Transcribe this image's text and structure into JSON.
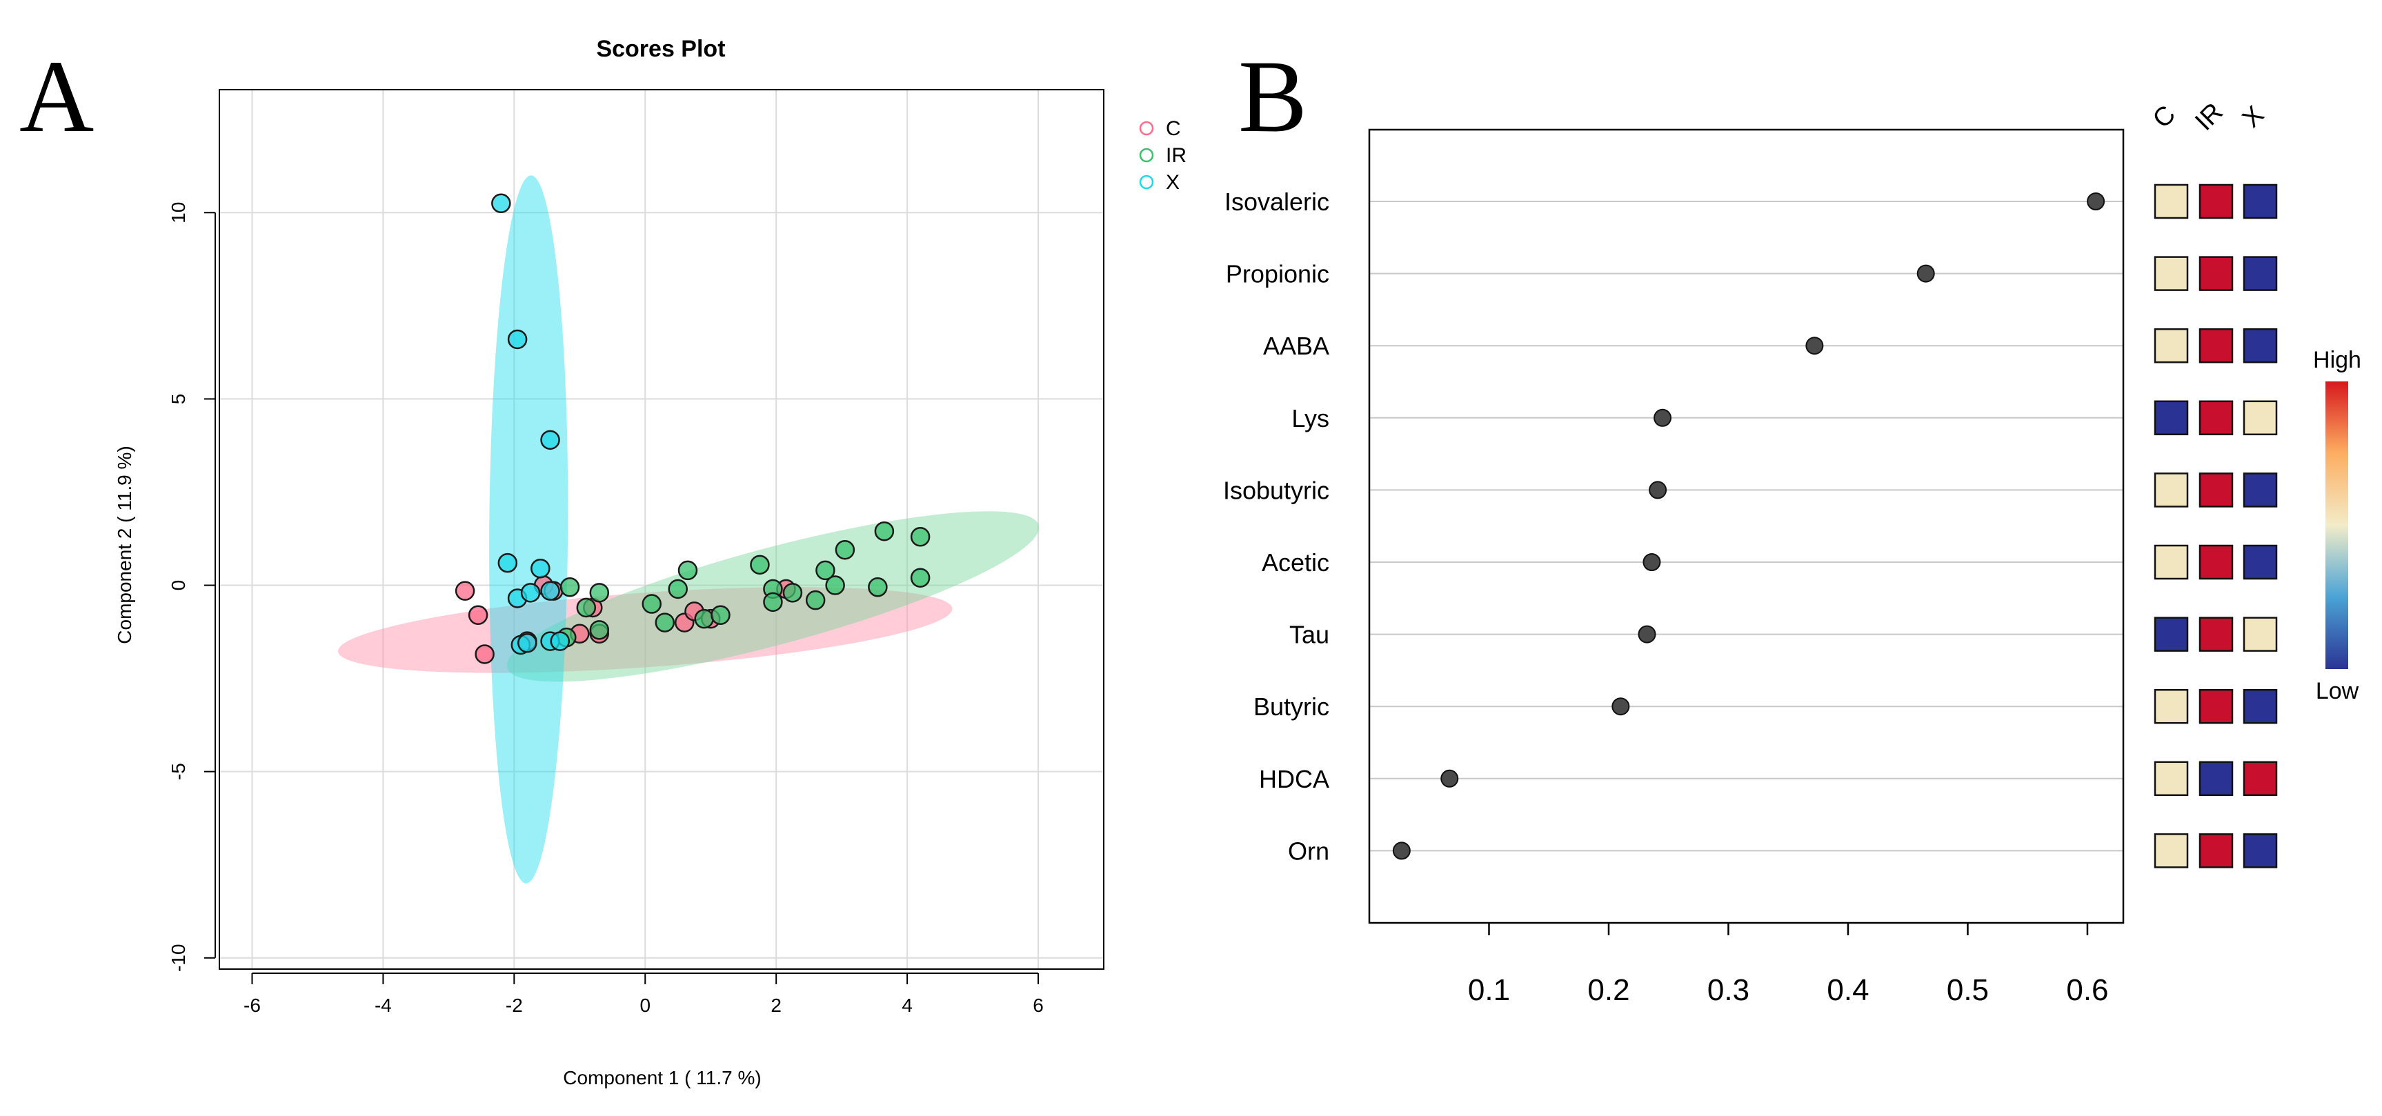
{
  "panels": {
    "a": {
      "label": "A"
    },
    "b": {
      "label": "B"
    }
  },
  "colors": {
    "C": "#ff6b8a",
    "IR": "#39c16e",
    "X": "#1fd9ea",
    "ellipse_C": "#ff8fa8",
    "ellipse_IR": "#79d89b",
    "ellipse_X": "#22dcec",
    "vip_point": "#4a4a4a",
    "high": "#c8102e",
    "mid": "#f2e6c0",
    "low": "#2a3393"
  },
  "chart_data": [
    {
      "type": "scatter",
      "title": "Scores Plot",
      "xlabel": "Component 1 ( 11.7 %)",
      "ylabel": "Component 2 ( 11.9 %)",
      "xlim": [
        -6.5,
        7.0
      ],
      "ylim": [
        -10.3,
        13.3
      ],
      "xticks": [
        -6,
        -4,
        -2,
        0,
        2,
        4,
        6
      ],
      "yticks": [
        -10,
        -5,
        0,
        5,
        10
      ],
      "xticklabels": [
        "-6",
        "-4",
        "-2",
        "0",
        "2",
        "4",
        "6"
      ],
      "yticklabels": [
        "-10",
        "-5",
        "0",
        "5",
        "10"
      ],
      "grid": true,
      "legend": "top-right",
      "series": [
        {
          "name": "C",
          "color_key": "C",
          "ellipse": {
            "cx": 0.0,
            "cy": -1.2,
            "rx": 4.7,
            "ry": 1.0,
            "angle_deg": 4
          },
          "points": [
            [
              -2.75,
              -0.15
            ],
            [
              -2.55,
              -0.8
            ],
            [
              -2.45,
              -1.85
            ],
            [
              -1.8,
              -1.5
            ],
            [
              -1.55,
              0.0
            ],
            [
              -1.4,
              -0.15
            ],
            [
              -0.8,
              -0.6
            ],
            [
              -1.0,
              -1.3
            ],
            [
              0.6,
              -1.0
            ],
            [
              0.75,
              -0.7
            ],
            [
              1.0,
              -0.9
            ],
            [
              2.15,
              -0.1
            ],
            [
              -0.7,
              -1.3
            ]
          ]
        },
        {
          "name": "IR",
          "color_key": "IR",
          "ellipse": {
            "cx": 1.95,
            "cy": -0.3,
            "rx": 4.2,
            "ry": 1.3,
            "angle_deg": 15
          },
          "points": [
            [
              -1.2,
              -1.4
            ],
            [
              -0.9,
              -0.6
            ],
            [
              -0.7,
              -0.2
            ],
            [
              -0.7,
              -1.2
            ],
            [
              0.1,
              -0.5
            ],
            [
              0.3,
              -1.0
            ],
            [
              0.5,
              -0.1
            ],
            [
              0.65,
              0.4
            ],
            [
              0.9,
              -0.9
            ],
            [
              1.15,
              -0.8
            ],
            [
              1.75,
              0.55
            ],
            [
              1.95,
              -0.1
            ],
            [
              1.95,
              -0.45
            ],
            [
              2.25,
              -0.2
            ],
            [
              2.6,
              -0.4
            ],
            [
              2.75,
              0.4
            ],
            [
              2.9,
              0.0
            ],
            [
              3.05,
              0.95
            ],
            [
              3.55,
              -0.05
            ],
            [
              3.65,
              1.45
            ],
            [
              4.2,
              1.3
            ],
            [
              4.2,
              0.2
            ],
            [
              -1.15,
              -0.05
            ]
          ]
        },
        {
          "name": "X",
          "color_key": "X",
          "ellipse": {
            "cx": -1.78,
            "cy": 1.5,
            "rx": 0.6,
            "ry": 9.5,
            "angle_deg": -0.4
          },
          "points": [
            [
              -2.2,
              10.25
            ],
            [
              -1.95,
              6.6
            ],
            [
              -1.45,
              3.9
            ],
            [
              -2.1,
              0.6
            ],
            [
              -1.6,
              0.45
            ],
            [
              -1.95,
              -0.35
            ],
            [
              -1.75,
              -0.2
            ],
            [
              -1.45,
              -0.15
            ],
            [
              -1.9,
              -1.6
            ],
            [
              -1.8,
              -1.55
            ],
            [
              -1.45,
              -1.5
            ],
            [
              -1.3,
              -1.5
            ]
          ]
        }
      ]
    },
    {
      "type": "dot",
      "title": "",
      "xlabel": "",
      "ylabel": "",
      "xlim": [
        0.0,
        0.63
      ],
      "xticks": [
        0.1,
        0.2,
        0.3,
        0.4,
        0.5,
        0.6
      ],
      "xticklabels": [
        "0.1",
        "0.2",
        "0.3",
        "0.4",
        "0.5",
        "0.6"
      ],
      "categories": [
        "Isovaleric",
        "Propionic",
        "AABA",
        "Lys",
        "Isobutyric",
        "Acetic",
        "Tau",
        "Butyric",
        "HDCA",
        "Orn"
      ],
      "values": [
        0.607,
        0.465,
        0.372,
        0.245,
        0.241,
        0.236,
        0.232,
        0.21,
        0.067,
        0.027
      ],
      "heatmap": {
        "columns": [
          "C",
          "IR",
          "X"
        ],
        "levels": [
          [
            "mid",
            "high",
            "low"
          ],
          [
            "mid",
            "high",
            "low"
          ],
          [
            "mid",
            "high",
            "low"
          ],
          [
            "low",
            "high",
            "mid"
          ],
          [
            "mid",
            "high",
            "low"
          ],
          [
            "mid",
            "high",
            "low"
          ],
          [
            "low",
            "high",
            "mid"
          ],
          [
            "mid",
            "high",
            "low"
          ],
          [
            "mid",
            "low",
            "high"
          ],
          [
            "mid",
            "high",
            "low"
          ]
        ]
      },
      "colorbar": {
        "high_label": "High",
        "low_label": "Low"
      }
    }
  ]
}
